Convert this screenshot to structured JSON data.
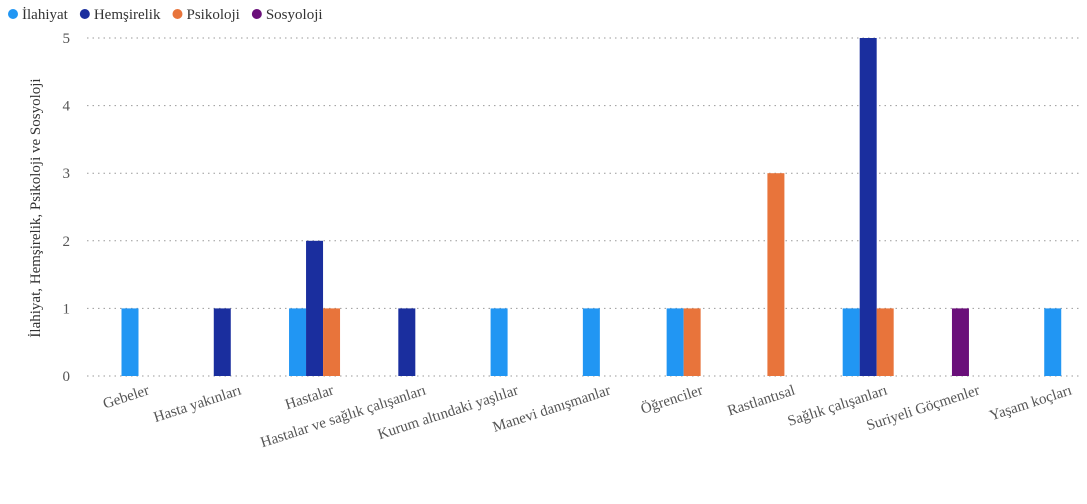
{
  "chart_data": {
    "type": "bar",
    "title": "",
    "xlabel": "",
    "ylabel": "İlahiyat, Hemşirelik, Psikoloji ve Sosyoloji",
    "ylim": [
      0,
      5
    ],
    "yticks": [
      0,
      1,
      2,
      3,
      4,
      5
    ],
    "grid": true,
    "legend_position": "top-left",
    "categories": [
      "Gebeler",
      "Hasta yakınları",
      "Hastalar",
      "Hastalar ve sağlık çalışanları",
      "Kurum altındaki yaşlılar",
      "Manevi danışmanlar",
      "Öğrenciler",
      "Rastlantısal",
      "Sağlık çalışanları",
      "Suriyeli Göçmenler",
      "Yaşam koçları"
    ],
    "series": [
      {
        "name": "İlahiyat",
        "color": "#2196f3",
        "values": [
          1,
          null,
          1,
          null,
          1,
          1,
          1,
          null,
          1,
          null,
          1
        ]
      },
      {
        "name": "Hemşirelik",
        "color": "#1a2e9e",
        "values": [
          null,
          1,
          2,
          1,
          null,
          null,
          null,
          null,
          5,
          null,
          null
        ]
      },
      {
        "name": "Psikoloji",
        "color": "#e8743b",
        "values": [
          null,
          null,
          1,
          null,
          null,
          null,
          1,
          3,
          1,
          null,
          null
        ]
      },
      {
        "name": "Sosyoloji",
        "color": "#6a0f7a",
        "values": [
          null,
          null,
          null,
          null,
          null,
          null,
          null,
          null,
          null,
          1,
          null
        ]
      }
    ]
  }
}
